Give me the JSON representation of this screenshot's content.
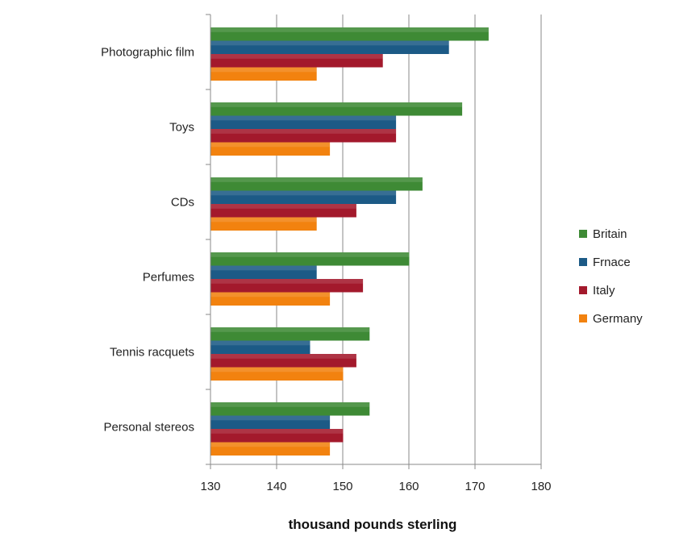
{
  "chart_data": {
    "type": "bar",
    "orientation": "horizontal",
    "categories": [
      "Photographic film",
      "Toys",
      "CDs",
      "Perfumes",
      "Tennis racquets",
      "Personal stereos"
    ],
    "series": [
      {
        "name": "Britain",
        "color": "#3e8a35",
        "values": [
          172,
          168,
          162,
          160,
          154,
          154
        ]
      },
      {
        "name": "Frnace",
        "color": "#1c5a86",
        "values": [
          166,
          158,
          158,
          146,
          145,
          148
        ]
      },
      {
        "name": "Italy",
        "color": "#a3192c",
        "values": [
          156,
          158,
          152,
          153,
          152,
          150
        ]
      },
      {
        "name": "Germany",
        "color": "#f2820f",
        "values": [
          146,
          148,
          146,
          148,
          150,
          148
        ]
      }
    ],
    "title": "",
    "xlabel": "thousand pounds sterling",
    "ylabel": "",
    "xlim": [
      130,
      180
    ],
    "xticks": [
      "130",
      "140",
      "150",
      "160",
      "170",
      "180"
    ],
    "grid": "vertical gridlines",
    "legend_position": "right"
  }
}
